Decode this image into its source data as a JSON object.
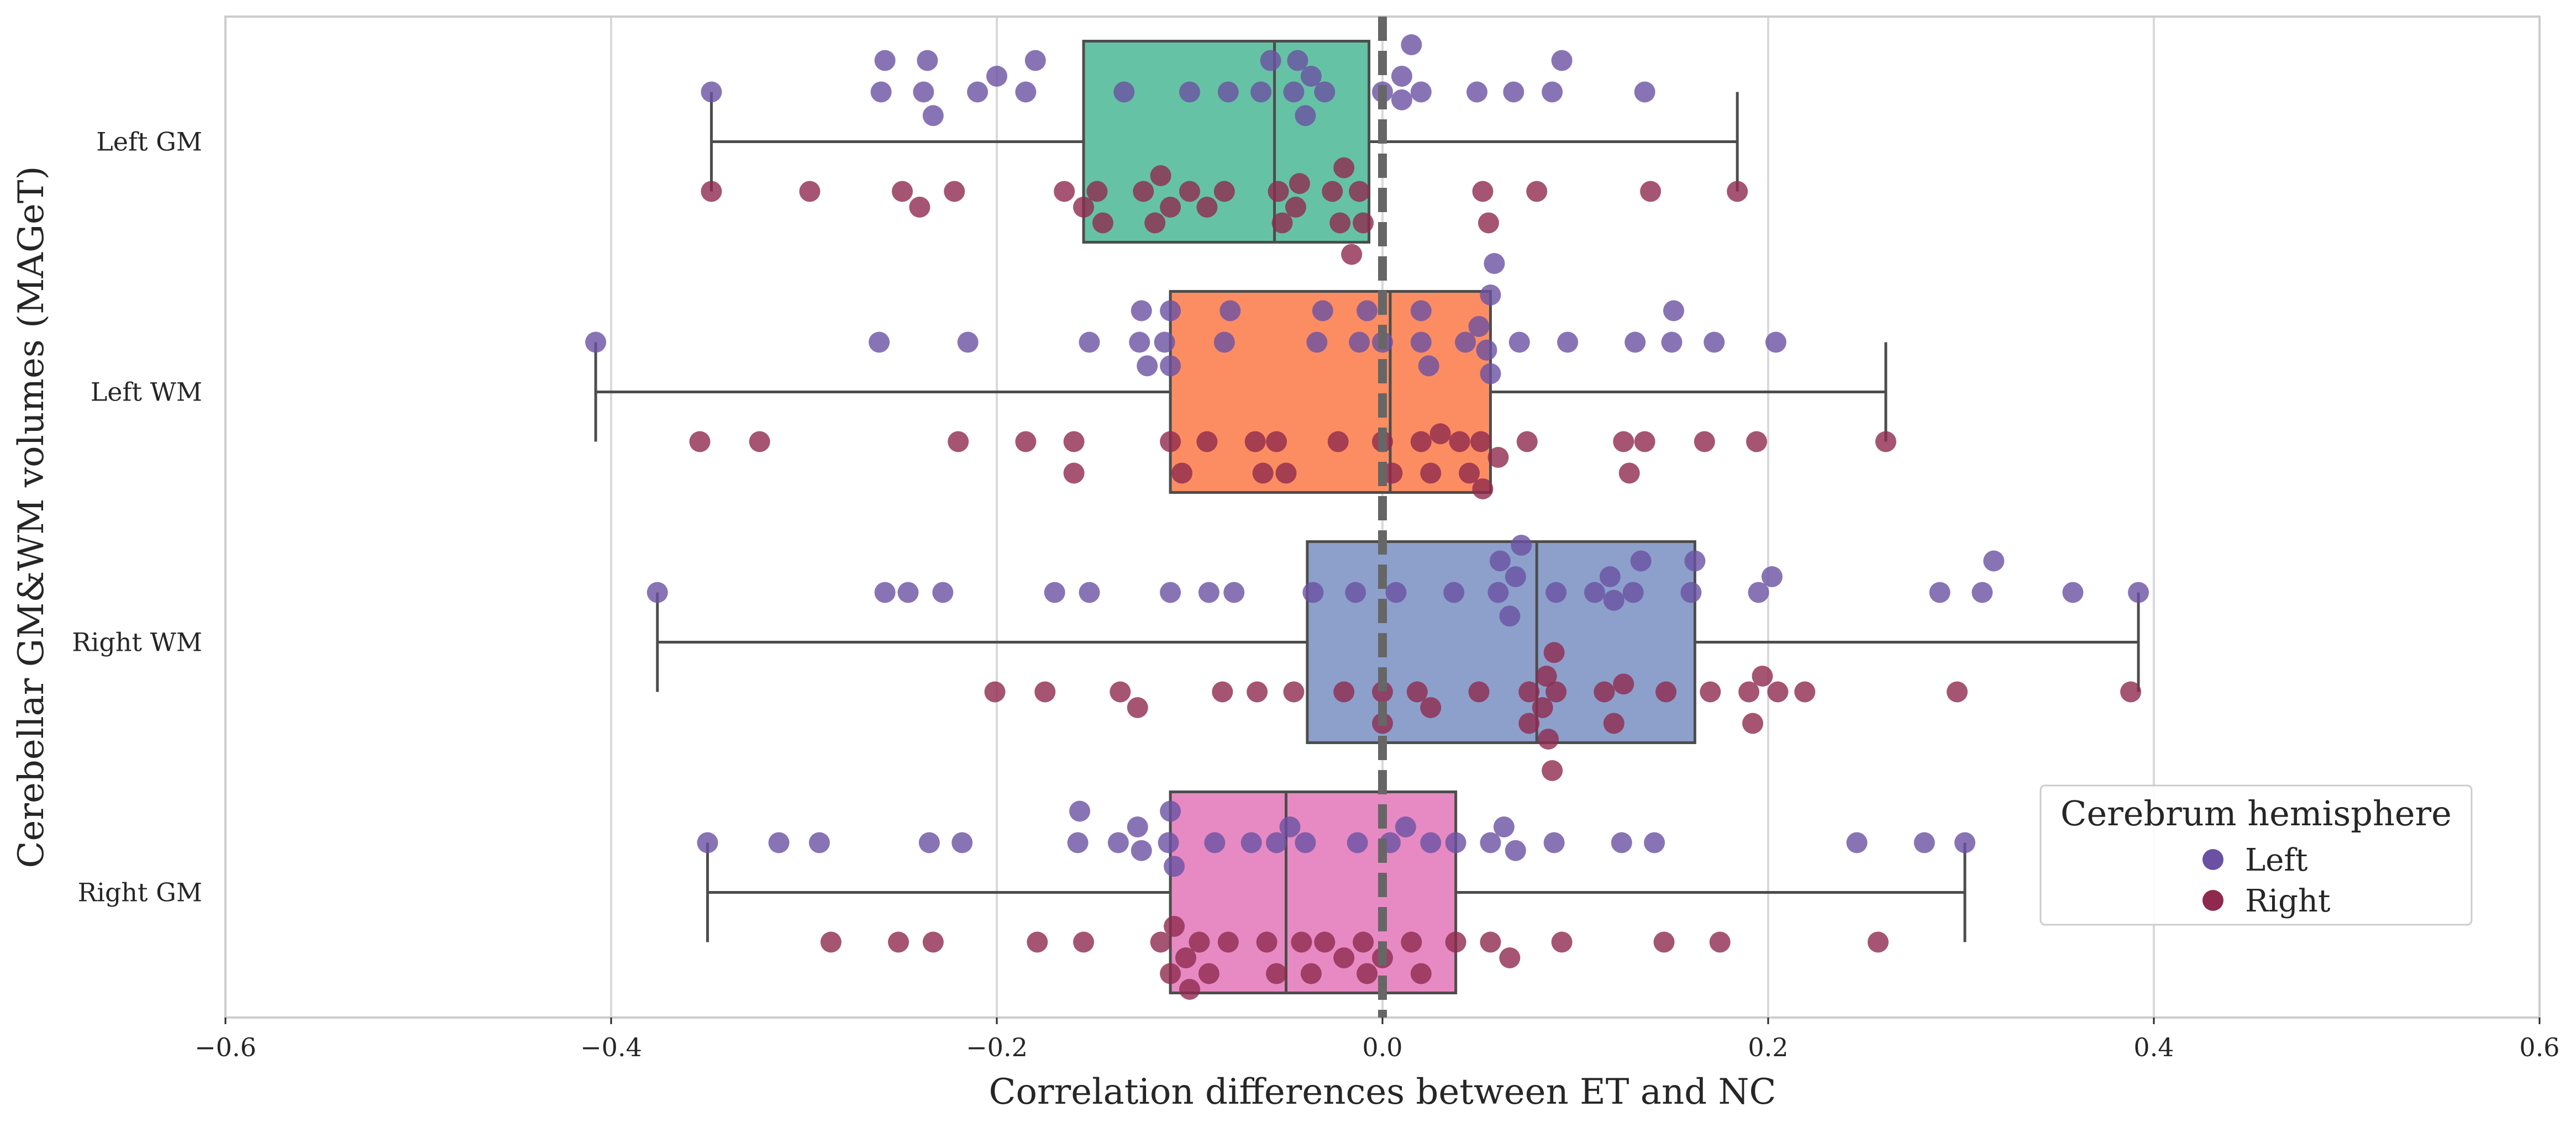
{
  "chart_data": {
    "type": "box",
    "orientation": "horizontal",
    "xlabel": "Correlation differences between ET and NC",
    "ylabel": "Cerebellar GM&WM volumes (MAGeT)",
    "xlim": [
      -0.6,
      0.6
    ],
    "xticks": [
      -0.6,
      -0.4,
      -0.2,
      0.0,
      0.2,
      0.4,
      0.6
    ],
    "xtick_labels": [
      "−0.6",
      "−0.4",
      "−0.2",
      "0.0",
      "0.2",
      "0.4",
      "0.6"
    ],
    "categories": [
      "Left GM",
      "Left WM",
      "Right WM",
      "Right GM"
    ],
    "grid": "vertical",
    "reference_line": {
      "x": 0.0,
      "style": "dashed",
      "color": "#666666"
    },
    "box_colors": [
      "#66C2A5",
      "#FC8D62",
      "#8DA0CB",
      "#E78AC3"
    ],
    "boxes": [
      {
        "category": "Left GM",
        "whisker_low": -0.348,
        "q1": -0.155,
        "median": -0.056,
        "q3": -0.007,
        "whisker_high": 0.184
      },
      {
        "category": "Left WM",
        "whisker_low": -0.408,
        "q1": -0.11,
        "median": 0.004,
        "q3": 0.056,
        "whisker_high": 0.261
      },
      {
        "category": "Right WM",
        "whisker_low": -0.376,
        "q1": -0.039,
        "median": 0.08,
        "q3": 0.162,
        "whisker_high": 0.392
      },
      {
        "category": "Right GM",
        "whisker_low": -0.35,
        "q1": -0.11,
        "median": -0.05,
        "q3": 0.038,
        "whisker_high": 0.302
      }
    ],
    "legend": {
      "title": "Cerebrum hemisphere",
      "placement": "lower right",
      "entries": [
        {
          "name": "Left",
          "color": "#6A51A3"
        },
        {
          "name": "Right",
          "color": "#8E2A4D"
        }
      ]
    },
    "points": [
      {
        "category": "Left GM",
        "hemisphere": "Left",
        "values": [
          -0.348,
          -0.26,
          -0.258,
          -0.238,
          -0.236,
          -0.233,
          -0.21,
          -0.2,
          -0.185,
          -0.18,
          -0.134,
          -0.1,
          -0.08,
          -0.063,
          -0.058,
          -0.046,
          -0.044,
          -0.04,
          -0.037,
          -0.03,
          0.0,
          0.01,
          0.01,
          0.015,
          0.02,
          0.049,
          0.068,
          0.088,
          0.093,
          0.136
        ]
      },
      {
        "category": "Left GM",
        "hemisphere": "Right",
        "values": [
          -0.348,
          -0.297,
          -0.249,
          -0.24,
          -0.222,
          -0.165,
          -0.155,
          -0.148,
          -0.145,
          -0.124,
          -0.118,
          -0.115,
          -0.11,
          -0.1,
          -0.091,
          -0.082,
          -0.054,
          -0.052,
          -0.045,
          -0.043,
          -0.026,
          -0.022,
          -0.02,
          -0.016,
          -0.012,
          -0.01,
          0.052,
          0.055,
          0.08,
          0.139,
          0.184
        ]
      },
      {
        "category": "Left WM",
        "hemisphere": "Left",
        "values": [
          -0.408,
          -0.261,
          -0.215,
          -0.152,
          -0.126,
          -0.125,
          -0.122,
          -0.113,
          -0.11,
          -0.11,
          -0.082,
          -0.079,
          -0.034,
          -0.031,
          -0.012,
          -0.008,
          0.0,
          0.02,
          0.02,
          0.024,
          0.043,
          0.05,
          0.054,
          0.056,
          0.056,
          0.058,
          0.071,
          0.096,
          0.131,
          0.15,
          0.151,
          0.172,
          0.204
        ]
      },
      {
        "category": "Left WM",
        "hemisphere": "Right",
        "values": [
          -0.354,
          -0.323,
          -0.22,
          -0.185,
          -0.16,
          -0.16,
          -0.11,
          -0.104,
          -0.091,
          -0.066,
          -0.062,
          -0.055,
          -0.05,
          -0.023,
          0.0,
          0.005,
          0.02,
          0.025,
          0.03,
          0.04,
          0.045,
          0.051,
          0.052,
          0.06,
          0.075,
          0.125,
          0.128,
          0.136,
          0.167,
          0.194,
          0.261
        ]
      },
      {
        "category": "Right WM",
        "hemisphere": "Left",
        "values": [
          -0.376,
          -0.258,
          -0.246,
          -0.228,
          -0.17,
          -0.152,
          -0.11,
          -0.09,
          -0.077,
          -0.036,
          -0.014,
          0.007,
          0.037,
          0.06,
          0.061,
          0.066,
          0.069,
          0.072,
          0.09,
          0.11,
          0.118,
          0.12,
          0.13,
          0.134,
          0.16,
          0.162,
          0.195,
          0.202,
          0.289,
          0.311,
          0.317,
          0.358,
          0.392
        ]
      },
      {
        "category": "Right WM",
        "hemisphere": "Right",
        "values": [
          -0.201,
          -0.175,
          -0.136,
          -0.127,
          -0.083,
          -0.065,
          -0.046,
          -0.02,
          0.0,
          0.0,
          0.018,
          0.025,
          0.05,
          0.076,
          0.076,
          0.083,
          0.085,
          0.086,
          0.088,
          0.089,
          0.09,
          0.115,
          0.12,
          0.125,
          0.147,
          0.17,
          0.19,
          0.192,
          0.197,
          0.205,
          0.219,
          0.298,
          0.388
        ]
      },
      {
        "category": "Right GM",
        "hemisphere": "Left",
        "values": [
          -0.35,
          -0.313,
          -0.292,
          -0.235,
          -0.218,
          -0.158,
          -0.157,
          -0.137,
          -0.127,
          -0.125,
          -0.111,
          -0.11,
          -0.108,
          -0.087,
          -0.068,
          -0.055,
          -0.048,
          -0.04,
          -0.013,
          0.004,
          0.012,
          0.025,
          0.038,
          0.056,
          0.063,
          0.069,
          0.089,
          0.124,
          0.141,
          0.246,
          0.281,
          0.302
        ]
      },
      {
        "category": "Right GM",
        "hemisphere": "Right",
        "values": [
          -0.286,
          -0.251,
          -0.233,
          -0.179,
          -0.155,
          -0.115,
          -0.11,
          -0.108,
          -0.102,
          -0.1,
          -0.095,
          -0.09,
          -0.08,
          -0.06,
          -0.055,
          -0.042,
          -0.037,
          -0.03,
          -0.02,
          -0.01,
          -0.008,
          0.0,
          0.015,
          0.02,
          0.038,
          0.056,
          0.066,
          0.093,
          0.146,
          0.175,
          0.257
        ]
      }
    ]
  }
}
